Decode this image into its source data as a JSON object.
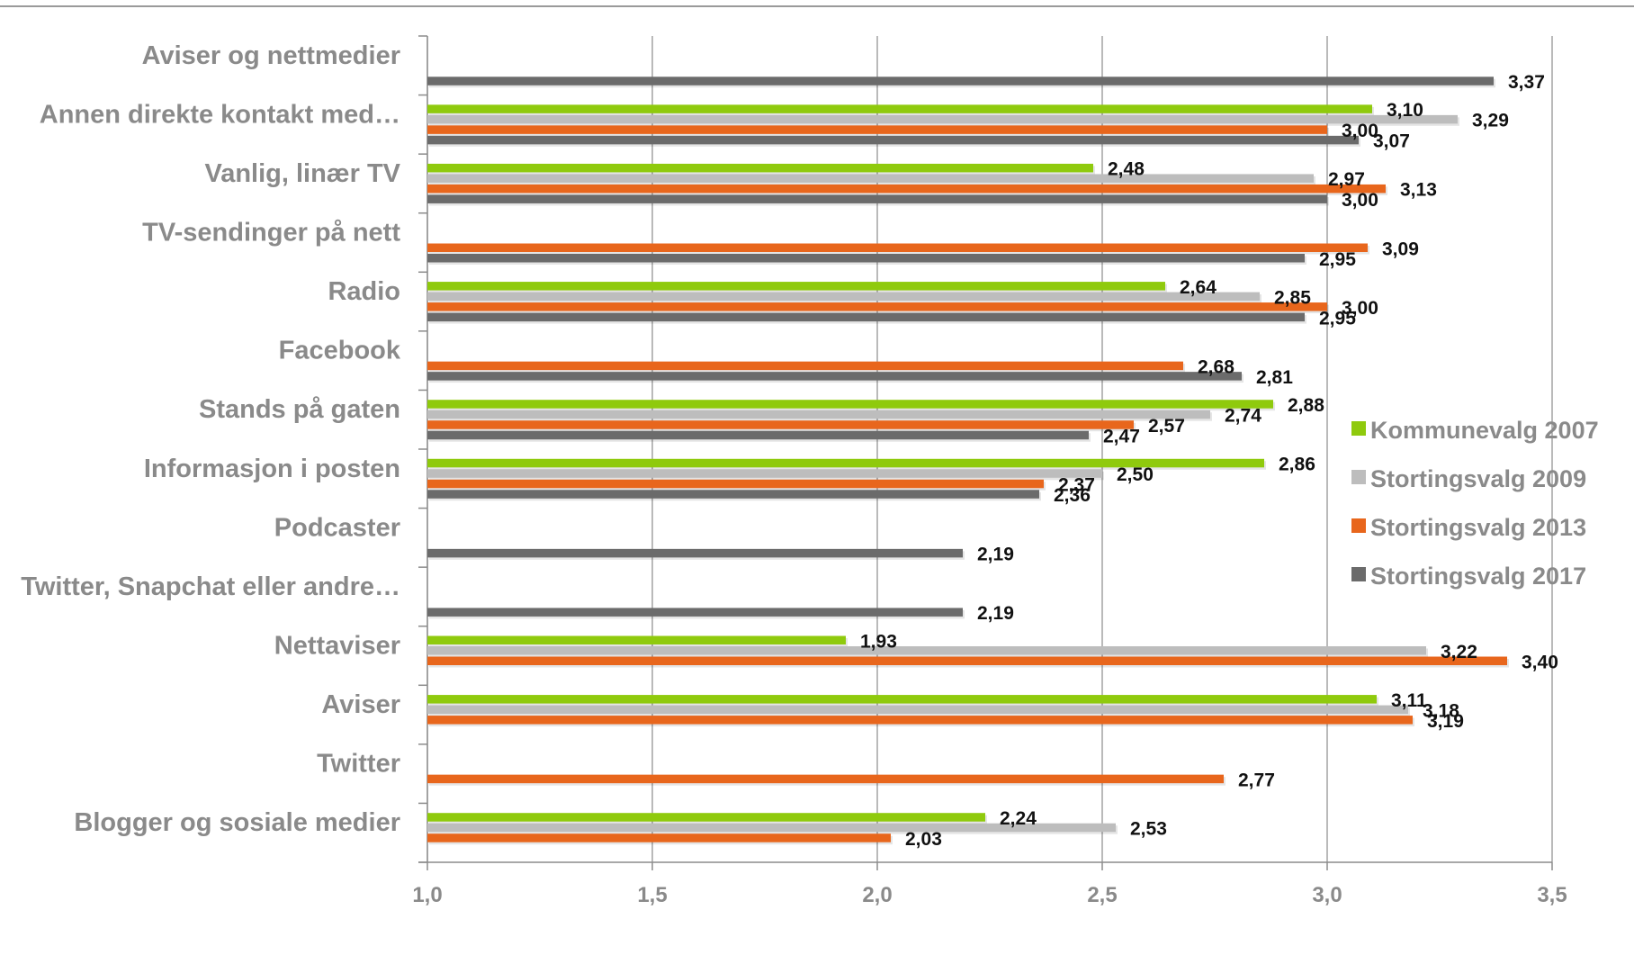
{
  "chart_data": {
    "type": "bar",
    "orientation": "horizontal",
    "categories": [
      "Aviser og nettmedier",
      "Annen direkte kontakt med…",
      "Vanlig, linær TV",
      "TV-sendinger på nett",
      "Radio",
      "Facebook",
      "Stands på gaten",
      "Informasjon i posten",
      "Podcaster",
      "Twitter, Snapchat eller andre…",
      "Nettaviser",
      "Aviser",
      "Twitter",
      "Blogger og sosiale medier"
    ],
    "series": [
      {
        "name": "Kommunevalg 2007",
        "color": "#8fca0d",
        "values": [
          null,
          3.1,
          2.48,
          null,
          2.64,
          null,
          2.88,
          2.86,
          null,
          null,
          1.93,
          3.11,
          null,
          2.24
        ],
        "labels": [
          null,
          "3,10",
          "2,48",
          null,
          "2,64",
          null,
          "2,88",
          "2,86",
          null,
          null,
          "1,93",
          "3,11",
          null,
          "2,24"
        ]
      },
      {
        "name": "Stortingsvalg 2009",
        "color": "#bdbdbd",
        "values": [
          null,
          3.29,
          2.97,
          null,
          2.85,
          null,
          2.74,
          2.5,
          null,
          null,
          3.22,
          3.18,
          null,
          2.53
        ],
        "labels": [
          null,
          "3,29",
          "2,97",
          null,
          "2,85",
          null,
          "2,74",
          "2,50",
          null,
          null,
          "3,22",
          "3,18",
          null,
          "2,53"
        ]
      },
      {
        "name": "Stortingsvalg 2013",
        "color": "#e8661c",
        "values": [
          null,
          3.0,
          3.13,
          3.09,
          3.0,
          2.68,
          2.57,
          2.37,
          null,
          null,
          3.4,
          3.19,
          2.77,
          2.03
        ],
        "labels": [
          null,
          "3,00",
          "3,13",
          "3,09",
          "3,00",
          "2,68",
          "2,57",
          "2,37",
          null,
          null,
          "3,40",
          "3,19",
          "2,77",
          "2,03"
        ]
      },
      {
        "name": "Stortingsvalg 2017",
        "color": "#6b6b6b",
        "values": [
          3.37,
          3.07,
          3.0,
          2.95,
          2.95,
          2.81,
          2.47,
          2.36,
          2.19,
          2.19,
          null,
          null,
          null,
          null
        ],
        "labels": [
          "3,37",
          "3,07",
          "3,00",
          "2,95",
          "2,95",
          "2,81",
          "2,47",
          "2,36",
          "2,19",
          "2,19",
          null,
          null,
          null,
          null
        ]
      }
    ],
    "xlim": [
      1.0,
      3.5
    ],
    "xticks": [
      1.0,
      1.5,
      2.0,
      2.5,
      3.0,
      3.5
    ],
    "xtick_labels": [
      "1,0",
      "1,5",
      "2,0",
      "2,5",
      "3,0",
      "3,5"
    ],
    "grid": true,
    "legend_position": "right"
  }
}
